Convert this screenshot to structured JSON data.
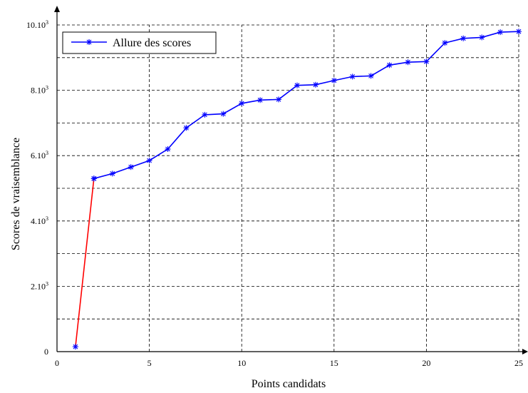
{
  "chart_data": {
    "type": "line",
    "xlabel": "Points candidats",
    "ylabel": "Scores de vraisemblance",
    "xlim": [
      0,
      25
    ],
    "ylim": [
      0,
      10000
    ],
    "x_ticks": [
      0,
      5,
      10,
      15,
      20,
      25
    ],
    "x_tick_labels": [
      "0",
      "5",
      "10",
      "15",
      "20",
      "25"
    ],
    "y_ticks": [
      0,
      2000,
      4000,
      6000,
      8000,
      10000
    ],
    "y_tick_labels": [
      {
        "base": "0",
        "exp": ""
      },
      {
        "base": "2.10",
        "exp": "3"
      },
      {
        "base": "4.10",
        "exp": "3"
      },
      {
        "base": "6.10",
        "exp": "3"
      },
      {
        "base": "8.10",
        "exp": "3"
      },
      {
        "base": "10.10",
        "exp": "3"
      }
    ],
    "grid": true,
    "grid_x_lines": [
      5,
      10,
      15,
      20,
      25
    ],
    "grid_y_lines": [
      1000,
      2000,
      3000,
      4000,
      5000,
      6000,
      7000,
      8000,
      9000,
      10000
    ],
    "legend_position": "top-left",
    "series": [
      {
        "name": "Allure des scores",
        "color": "#0000ff",
        "marker": "asterisk",
        "x": [
          2,
          3,
          4,
          5,
          6,
          7,
          8,
          9,
          10,
          11,
          12,
          13,
          14,
          15,
          16,
          17,
          18,
          19,
          20,
          21,
          22,
          23,
          24,
          25
        ],
        "y": [
          5300,
          5450,
          5650,
          5850,
          6200,
          6850,
          7250,
          7280,
          7600,
          7700,
          7720,
          8150,
          8170,
          8300,
          8420,
          8440,
          8770,
          8860,
          8880,
          9450,
          9590,
          9620,
          9780,
          9800
        ]
      },
      {
        "color": "#ff0000",
        "marker": "asterisk",
        "x": [
          1,
          2
        ],
        "y": [
          150,
          5300
        ]
      }
    ]
  }
}
